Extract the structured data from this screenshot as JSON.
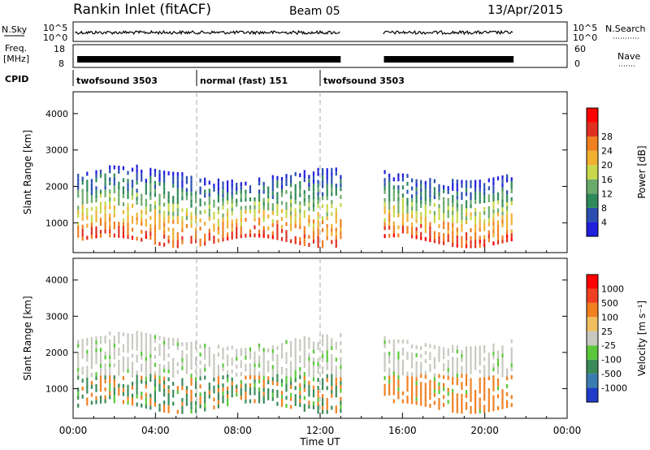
{
  "header": {
    "station": "Rankin Inlet (fitACF)",
    "beam": "Beam 05",
    "date": "13/Apr/2015"
  },
  "noise_panel": {
    "left_label": "N.Sky",
    "right_label": "N.Search",
    "ticks": [
      "10^5",
      "10^0"
    ]
  },
  "freq_panel": {
    "left_label_line1": "Freq.",
    "left_label_line2": "[MHz]",
    "left_ticks": [
      "18",
      "8"
    ],
    "right_ticks": [
      "60",
      "0"
    ],
    "right_label": "Nave"
  },
  "cpid_panel": {
    "label": "CPID",
    "modes": [
      {
        "name": "twofsound 3503",
        "start_hour": 0.0
      },
      {
        "name": "normal (fast) 151",
        "start_hour": 6.0
      },
      {
        "name": "twofsound 3503",
        "start_hour": 12.0
      }
    ]
  },
  "chart_data": [
    {
      "type": "heatmap",
      "title": "",
      "quantity": "Power",
      "colorbar_label": "Power [dB]",
      "colorbar_ticks": [
        "4",
        "8",
        "12",
        "16",
        "20",
        "24",
        "28"
      ],
      "colorbar_colors": [
        "#1f1fdc",
        "#2a4fb0",
        "#2f8a5a",
        "#6aaa6a",
        "#c8d84a",
        "#f0b030",
        "#f07f20",
        "#e03020",
        "#ff0000"
      ],
      "ylabel": "Slant Range [km]",
      "ylim": [
        180,
        4600
      ],
      "yticks": [
        "1000",
        "2000",
        "3000",
        "4000"
      ],
      "xlim": [
        0,
        24
      ],
      "x_gap_hours": [
        13.0,
        15.0
      ],
      "data_coverage_hours": [
        [
          0.0,
          13.0
        ],
        [
          15.0,
          21.4
        ]
      ]
    },
    {
      "type": "heatmap",
      "title": "",
      "quantity": "Velocity",
      "colorbar_label": "Velocity [m s^-1]",
      "colorbar_ticks": [
        "1000",
        "500",
        "100",
        "25",
        "-25",
        "-100",
        "-500",
        "-1000"
      ],
      "colorbar_colors": [
        "#1f3cc8",
        "#3a7cb0",
        "#3a8a5a",
        "#5ac83a",
        "#c8c8c0",
        "#f0c060",
        "#f08020",
        "#f04020",
        "#ff0000"
      ],
      "ylabel": "Slant Range [km]",
      "ylim": [
        180,
        4600
      ],
      "yticks": [
        "1000",
        "2000",
        "3000",
        "4000"
      ],
      "xlim": [
        0,
        24
      ],
      "xlabel": "Time UT",
      "xticks": [
        "00:00",
        "04:00",
        "08:00",
        "12:00",
        "16:00",
        "20:00",
        "00:00"
      ]
    }
  ]
}
